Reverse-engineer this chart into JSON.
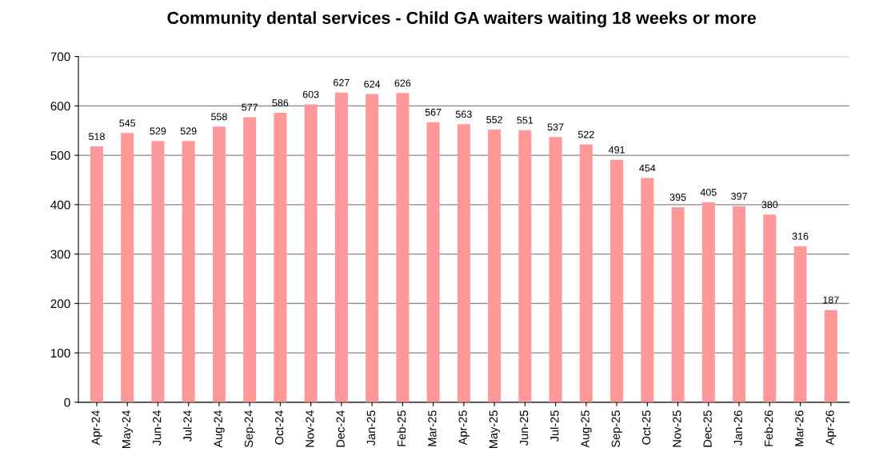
{
  "chart_data": {
    "type": "bar",
    "title": "Community dental services - Child GA waiters waiting 18 weeks or more",
    "categories": [
      "Apr-24",
      "May-24",
      "Jun-24",
      "Jul-24",
      "Aug-24",
      "Sep-24",
      "Oct-24",
      "Nov-24",
      "Dec-24",
      "Jan-25",
      "Feb-25",
      "Mar-25",
      "Apr-25",
      "May-25",
      "Jun-25",
      "Jul-25",
      "Aug-25",
      "Sep-25",
      "Oct-25",
      "Nov-25",
      "Dec-25",
      "Jan-26",
      "Feb-26",
      "Mar-26",
      "Apr-26"
    ],
    "values": [
      518,
      545,
      529,
      529,
      558,
      577,
      586,
      603,
      627,
      624,
      626,
      567,
      563,
      552,
      551,
      537,
      522,
      491,
      454,
      395,
      405,
      397,
      380,
      316,
      187
    ],
    "color": "#ff9999",
    "ylim": [
      0,
      700
    ],
    "yticks": [
      0,
      100,
      200,
      300,
      400,
      500,
      600,
      700
    ],
    "grid": "y",
    "data_labels": true
  }
}
